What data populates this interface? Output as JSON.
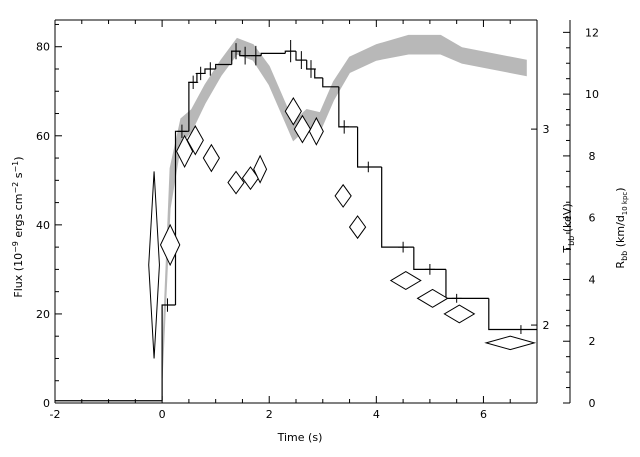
{
  "chart_data": {
    "type": "line",
    "xlabel": "Time (s)",
    "ylabel_left": {
      "pre": "Flux (10",
      "sup1": "−9",
      "mid1": " ergs cm",
      "sup2": "−2",
      "mid2": " s",
      "sup3": "−1",
      "post": ")"
    },
    "ylabel_mid": {
      "main": "T",
      "sub": "bb",
      "post": " (keV)"
    },
    "ylabel_right": {
      "main": "R",
      "sub1": "bb",
      "mid": " (km/d",
      "sub2": "10 kpc",
      "post": ")"
    },
    "x_range": [
      -2,
      7
    ],
    "x_ticks": [
      -2,
      0,
      2,
      4,
      6
    ],
    "flux_range": [
      0,
      86
    ],
    "flux_ticks": [
      0,
      20,
      40,
      60,
      80
    ],
    "radius_range": [
      0,
      12.4
    ],
    "radius_ticks": [
      0,
      2,
      4,
      6,
      8,
      10,
      12
    ],
    "temperature_ticks": [
      {
        "label": "2",
        "flux_equiv": 17.5
      },
      {
        "label": "3",
        "flux_equiv": 61.5
      }
    ],
    "flux_histogram": [
      {
        "x0": -2.0,
        "x1": 0.0,
        "y": 0.5
      },
      {
        "x0": 0.0,
        "x1": 0.25,
        "y": 22
      },
      {
        "x0": 0.25,
        "x1": 0.5,
        "y": 61
      },
      {
        "x0": 0.5,
        "x1": 0.65,
        "y": 72
      },
      {
        "x0": 0.65,
        "x1": 0.8,
        "y": 74
      },
      {
        "x0": 0.8,
        "x1": 1.0,
        "y": 75
      },
      {
        "x0": 1.0,
        "x1": 1.3,
        "y": 76
      },
      {
        "x0": 1.3,
        "x1": 1.45,
        "y": 79
      },
      {
        "x0": 1.45,
        "x1": 1.65,
        "y": 78
      },
      {
        "x0": 1.65,
        "x1": 1.85,
        "y": 78
      },
      {
        "x0": 1.85,
        "x1": 2.3,
        "y": 78.5
      },
      {
        "x0": 2.3,
        "x1": 2.5,
        "y": 79
      },
      {
        "x0": 2.5,
        "x1": 2.7,
        "y": 77
      },
      {
        "x0": 2.7,
        "x1": 2.85,
        "y": 75
      },
      {
        "x0": 2.85,
        "x1": 3.0,
        "y": 73
      },
      {
        "x0": 3.0,
        "x1": 3.3,
        "y": 71
      },
      {
        "x0": 3.3,
        "x1": 3.5,
        "y": 62
      },
      {
        "x0": 3.5,
        "x1": 3.65,
        "y": 62
      },
      {
        "x0": 3.65,
        "x1": 4.1,
        "y": 53
      },
      {
        "x0": 4.1,
        "x1": 4.7,
        "y": 35
      },
      {
        "x0": 4.7,
        "x1": 5.3,
        "y": 30
      },
      {
        "x0": 5.3,
        "x1": 6.1,
        "y": 23.5
      },
      {
        "x0": 6.1,
        "x1": 7.0,
        "y": 16.5
      }
    ],
    "flux_errors": [
      {
        "x": 0.1,
        "y": 22,
        "e": 1.5
      },
      {
        "x": 0.37,
        "y": 61,
        "e": 1.5
      },
      {
        "x": 0.58,
        "y": 72,
        "e": 1.5
      },
      {
        "x": 0.72,
        "y": 74,
        "e": 1.5
      },
      {
        "x": 0.9,
        "y": 75,
        "e": 1.5
      },
      {
        "x": 1.38,
        "y": 79,
        "e": 1.8
      },
      {
        "x": 1.55,
        "y": 78,
        "e": 2.0
      },
      {
        "x": 1.75,
        "y": 78,
        "e": 2.2
      },
      {
        "x": 2.4,
        "y": 79,
        "e": 2.5
      },
      {
        "x": 2.6,
        "y": 77,
        "e": 2.0
      },
      {
        "x": 2.78,
        "y": 75,
        "e": 2.0
      },
      {
        "x": 3.4,
        "y": 62,
        "e": 1.5
      },
      {
        "x": 3.85,
        "y": 53,
        "e": 1.2
      },
      {
        "x": 4.5,
        "y": 35,
        "e": 1.2
      },
      {
        "x": 5.0,
        "y": 30,
        "e": 1.2
      },
      {
        "x": 5.5,
        "y": 23.5,
        "e": 1.0
      },
      {
        "x": 6.7,
        "y": 16.5,
        "e": 1.0
      }
    ],
    "temperature_points": [
      {
        "x": -0.15,
        "y": 31,
        "dx": 0.1,
        "dy": 21
      },
      {
        "x": 0.15,
        "y": 35.5,
        "dx": 0.18,
        "dy": 4.5
      },
      {
        "x": 0.42,
        "y": 56.5,
        "dx": 0.15,
        "dy": 3.5
      },
      {
        "x": 0.62,
        "y": 59,
        "dx": 0.15,
        "dy": 3.2
      },
      {
        "x": 0.92,
        "y": 55,
        "dx": 0.15,
        "dy": 3.0
      },
      {
        "x": 1.38,
        "y": 49.5,
        "dx": 0.15,
        "dy": 2.5
      },
      {
        "x": 1.65,
        "y": 50.5,
        "dx": 0.15,
        "dy": 2.5
      },
      {
        "x": 1.83,
        "y": 52.5,
        "dx": 0.12,
        "dy": 3.0
      },
      {
        "x": 2.45,
        "y": 65.5,
        "dx": 0.15,
        "dy": 3.0
      },
      {
        "x": 2.62,
        "y": 61.5,
        "dx": 0.15,
        "dy": 3.0
      },
      {
        "x": 2.88,
        "y": 61,
        "dx": 0.13,
        "dy": 3.0
      },
      {
        "x": 3.38,
        "y": 46.5,
        "dx": 0.15,
        "dy": 2.5
      },
      {
        "x": 3.65,
        "y": 39.5,
        "dx": 0.15,
        "dy": 2.5
      },
      {
        "x": 4.55,
        "y": 27.5,
        "dx": 0.28,
        "dy": 2.0
      },
      {
        "x": 5.05,
        "y": 23.5,
        "dx": 0.28,
        "dy": 2.0
      },
      {
        "x": 5.55,
        "y": 20,
        "dx": 0.28,
        "dy": 2.0
      },
      {
        "x": 6.5,
        "y": 13.5,
        "dx": 0.45,
        "dy": 1.5
      }
    ],
    "radius_band": [
      {
        "t": 0.0,
        "lo": 0.8,
        "hi": 1.3
      },
      {
        "t": 0.15,
        "lo": 6.3,
        "hi": 7.6
      },
      {
        "t": 0.35,
        "lo": 8.4,
        "hi": 9.2
      },
      {
        "t": 0.55,
        "lo": 8.8,
        "hi": 9.5
      },
      {
        "t": 0.8,
        "lo": 9.7,
        "hi": 10.3
      },
      {
        "t": 1.1,
        "lo": 10.6,
        "hi": 11.1
      },
      {
        "t": 1.4,
        "lo": 11.3,
        "hi": 11.8
      },
      {
        "t": 1.7,
        "lo": 11.1,
        "hi": 11.6
      },
      {
        "t": 2.0,
        "lo": 10.3,
        "hi": 10.9
      },
      {
        "t": 2.25,
        "lo": 9.3,
        "hi": 9.9
      },
      {
        "t": 2.45,
        "lo": 8.5,
        "hi": 9.1
      },
      {
        "t": 2.7,
        "lo": 8.9,
        "hi": 9.5
      },
      {
        "t": 2.95,
        "lo": 8.8,
        "hi": 9.4
      },
      {
        "t": 3.2,
        "lo": 9.8,
        "hi": 10.4
      },
      {
        "t": 3.5,
        "lo": 10.7,
        "hi": 11.2
      },
      {
        "t": 4.0,
        "lo": 11.1,
        "hi": 11.6
      },
      {
        "t": 4.6,
        "lo": 11.3,
        "hi": 11.9
      },
      {
        "t": 5.2,
        "lo": 11.3,
        "hi": 11.9
      },
      {
        "t": 5.6,
        "lo": 11.0,
        "hi": 11.5
      },
      {
        "t": 6.2,
        "lo": 10.8,
        "hi": 11.3
      },
      {
        "t": 6.8,
        "lo": 10.6,
        "hi": 11.1
      }
    ],
    "colors": {
      "axis": "#000000",
      "band": "#b8b8b8",
      "background": "#ffffff"
    }
  }
}
